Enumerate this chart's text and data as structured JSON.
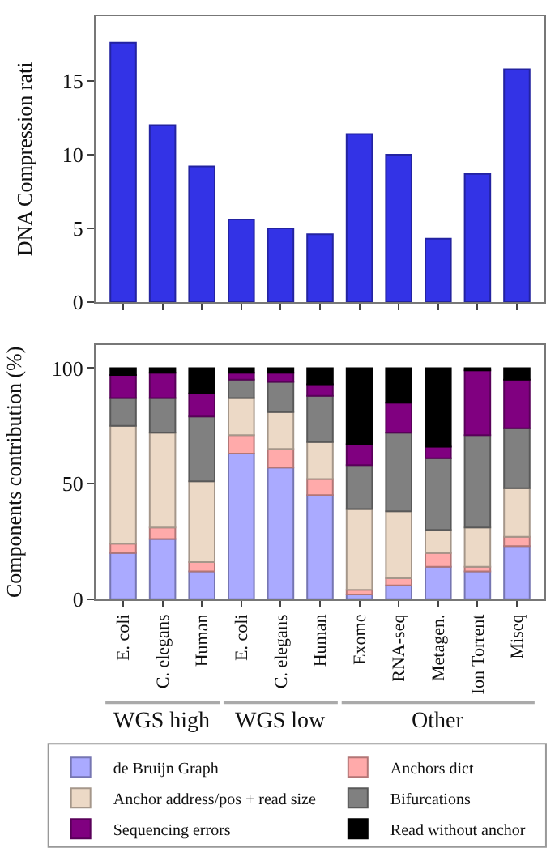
{
  "chart_data": [
    {
      "type": "bar",
      "ylabel": "DNA Compression rati",
      "categories": [
        null,
        null,
        null,
        null,
        null,
        null,
        null,
        null,
        null,
        null,
        null
      ],
      "values": [
        17.6,
        12.0,
        9.2,
        5.6,
        5.0,
        4.6,
        11.4,
        10.0,
        4.3,
        8.7,
        15.8
      ],
      "color": "#3333e6",
      "ylim": [
        0,
        19.4
      ],
      "yticks": [
        0,
        5,
        10,
        15
      ],
      "grid": false
    },
    {
      "type": "bar",
      "stacked": true,
      "ylabel": "Components contribution (%)",
      "categories": [
        "E. coli",
        "C. elegans",
        "Human",
        "E. coli",
        "C. elegans",
        "Human",
        "Exome",
        "RNA-seq",
        "Metagen.",
        "Ion Torrent",
        "Miseq"
      ],
      "ylim": [
        0,
        110
      ],
      "yticks": [
        0,
        50,
        100
      ],
      "grid": false,
      "legend": "bottom",
      "series": [
        {
          "name": "de Bruijn Graph",
          "color": "#aaaaff",
          "values": [
            20,
            26,
            12,
            63,
            57,
            45,
            2,
            6,
            14,
            12,
            23
          ]
        },
        {
          "name": "Anchors dict",
          "color": "#ffaaaa",
          "values": [
            4,
            5,
            4,
            8,
            8,
            7,
            2,
            3,
            6,
            2,
            4
          ]
        },
        {
          "name": "Anchor address/pos + read size",
          "color": "#ecd9c6",
          "values": [
            51,
            41,
            35,
            16,
            16,
            16,
            35,
            29,
            10,
            17,
            21
          ]
        },
        {
          "name": "Bifurcations",
          "color": "#808080",
          "values": [
            12,
            15,
            28,
            8,
            13,
            20,
            19,
            34,
            31,
            40,
            26
          ]
        },
        {
          "name": "Sequencing errors",
          "color": "#800080",
          "values": [
            10,
            11,
            10,
            3,
            4,
            5,
            9,
            13,
            5,
            28,
            21
          ]
        },
        {
          "name": "Read without anchor",
          "color": "#000000",
          "values": [
            3,
            2,
            11,
            2,
            2,
            7,
            33,
            15,
            34,
            1,
            5
          ]
        }
      ],
      "annotations": [
        "WGS high",
        "WGS low",
        "Other"
      ]
    }
  ]
}
